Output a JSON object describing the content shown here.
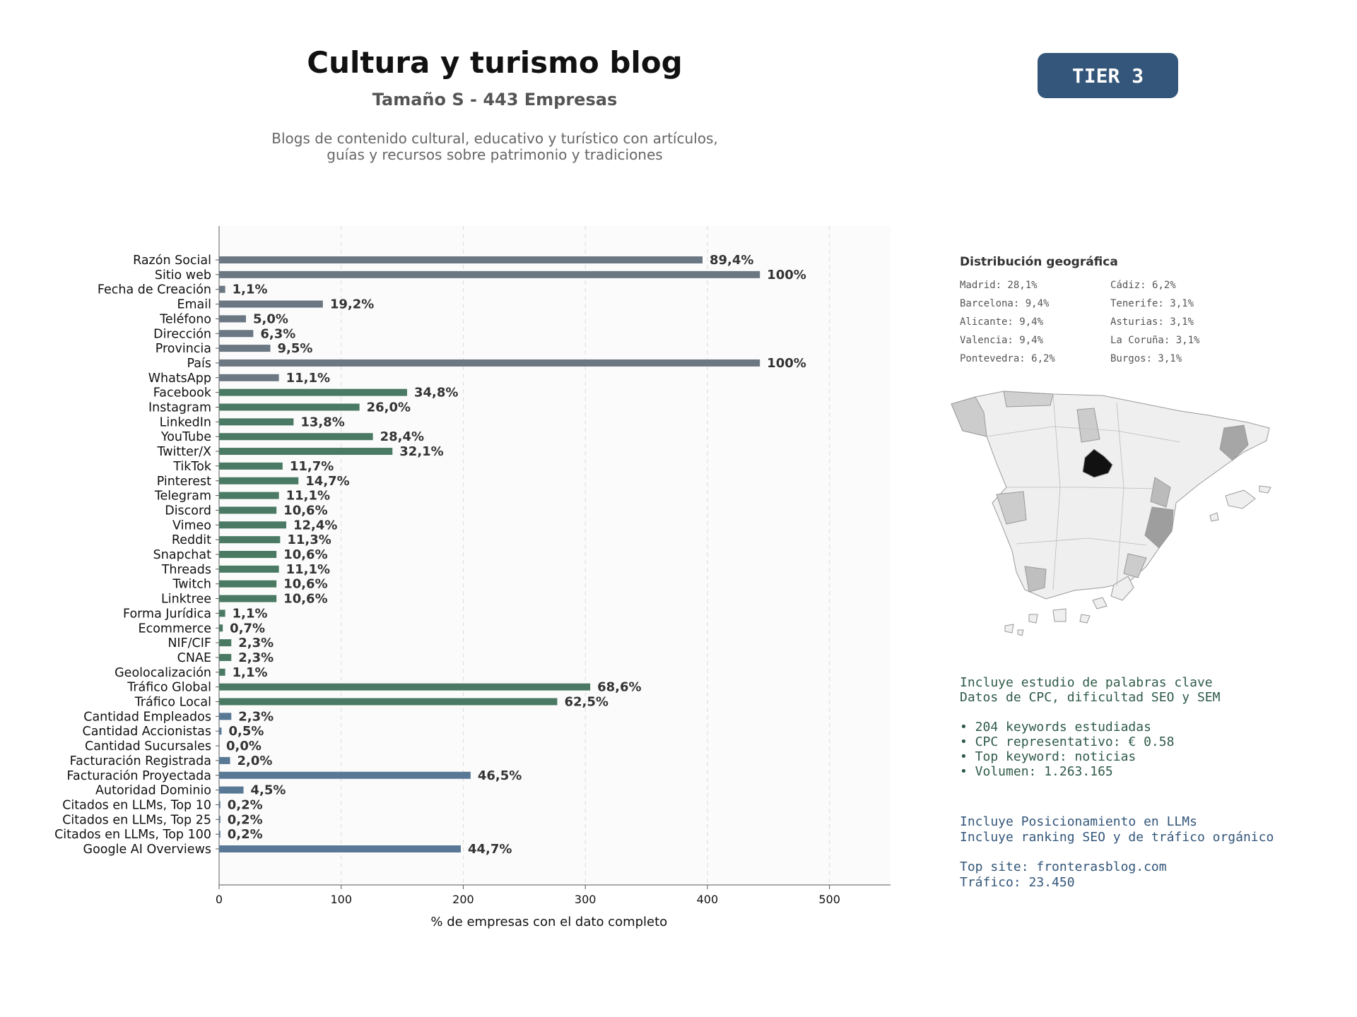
{
  "header": {
    "title": "Cultura y turismo blog",
    "subtitle": "Tamaño S - 443 Empresas",
    "description_line1": "Blogs de contenido cultural, educativo y turístico con artículos,",
    "description_line2": "guías y recursos sobre patrimonio y tradiciones",
    "tier_badge": "TIER 3"
  },
  "colors": {
    "gray_bars": "#6b7783",
    "green_bars": "#4a7a63",
    "blue_bars": "#587896",
    "tier_bg": "#33567a",
    "map_madrid": "#111111"
  },
  "chart_data": {
    "type": "bar",
    "orientation": "horizontal",
    "categories": [
      "Razón Social",
      "Sitio web",
      "Fecha de Creación",
      "Email",
      "Teléfono",
      "Dirección",
      "Provincia",
      "País",
      "WhatsApp",
      "Facebook",
      "Instagram",
      "LinkedIn",
      "YouTube",
      "Twitter/X",
      "TikTok",
      "Pinterest",
      "Telegram",
      "Discord",
      "Vimeo",
      "Reddit",
      "Snapchat",
      "Threads",
      "Twitch",
      "Linktree",
      "Forma Jurídica",
      "Ecommerce",
      "NIF/CIF",
      "CNAE",
      "Geolocalización",
      "Tráfico Global",
      "Tráfico Local",
      "Cantidad Empleados",
      "Cantidad Accionistas",
      "Cantidad Sucursales",
      "Facturación Registrada",
      "Facturación Proyectada",
      "Autoridad Dominio",
      "Citados en LLMs, Top 10",
      "Citados en LLMs, Top 25",
      "Citados en LLMs, Top 100",
      "Google AI Overviews"
    ],
    "values": [
      396,
      443,
      5,
      85,
      22,
      28,
      42,
      443,
      49,
      154,
      115,
      61,
      126,
      142,
      52,
      65,
      49,
      47,
      55,
      50,
      47,
      49,
      47,
      47,
      5,
      3,
      10,
      10,
      5,
      304,
      277,
      10,
      2,
      0,
      9,
      206,
      20,
      1,
      1,
      1,
      198
    ],
    "labels": [
      "89,4%",
      "100%",
      "1,1%",
      "19,2%",
      "5,0%",
      "6,3%",
      "9,5%",
      "100%",
      "11,1%",
      "34,8%",
      "26,0%",
      "13,8%",
      "28,4%",
      "32,1%",
      "11,7%",
      "14,7%",
      "11,1%",
      "10,6%",
      "12,4%",
      "11,3%",
      "10,6%",
      "11,1%",
      "10,6%",
      "10,6%",
      "1,1%",
      "0,7%",
      "2,3%",
      "2,3%",
      "1,1%",
      "68,6%",
      "62,5%",
      "2,3%",
      "0,5%",
      "0,0%",
      "2,0%",
      "46,5%",
      "4,5%",
      "0,2%",
      "0,2%",
      "0,2%",
      "44,7%"
    ],
    "groups": [
      "gray",
      "gray",
      "gray",
      "gray",
      "gray",
      "gray",
      "gray",
      "gray",
      "gray",
      "green",
      "green",
      "green",
      "green",
      "green",
      "green",
      "green",
      "green",
      "green",
      "green",
      "green",
      "green",
      "green",
      "green",
      "green",
      "green",
      "green",
      "green",
      "green",
      "green",
      "green",
      "green",
      "blue",
      "blue",
      "blue",
      "blue",
      "blue",
      "blue",
      "blue",
      "blue",
      "blue",
      "blue"
    ],
    "xlabel": "% de empresas con el dato completo",
    "xlim": [
      0,
      550
    ],
    "xticks": [
      0,
      100,
      200,
      300,
      400,
      500
    ],
    "grid": "vertical dashed"
  },
  "geo": {
    "title": "Distribución geográfica",
    "items": [
      "Madrid: 28,1%",
      "Barcelona: 9,4%",
      "Alicante: 9,4%",
      "Valencia: 9,4%",
      "Pontevedra: 6,2%",
      "Cádiz: 6,2%",
      "Tenerife: 3,1%",
      "Asturias: 3,1%",
      "La Coruña: 3,1%",
      "Burgos: 3,1%"
    ]
  },
  "keywords": {
    "line1": "Incluye estudio de palabras clave",
    "line2": "Datos de CPC, dificultad SEO y SEM",
    "bullet1": "• 204 keywords estudiadas",
    "bullet2": "• CPC representativo: € 0.58",
    "bullet3": "• Top keyword: noticias",
    "bullet4": "• Volumen: 1.263.165"
  },
  "llm": {
    "line1": "Incluye Posicionamiento en LLMs",
    "line2": "Incluye ranking SEO y de tráfico orgánico",
    "top_site": "Top site: fronterasblog.com",
    "traffic": "Tráfico: 23.450"
  }
}
